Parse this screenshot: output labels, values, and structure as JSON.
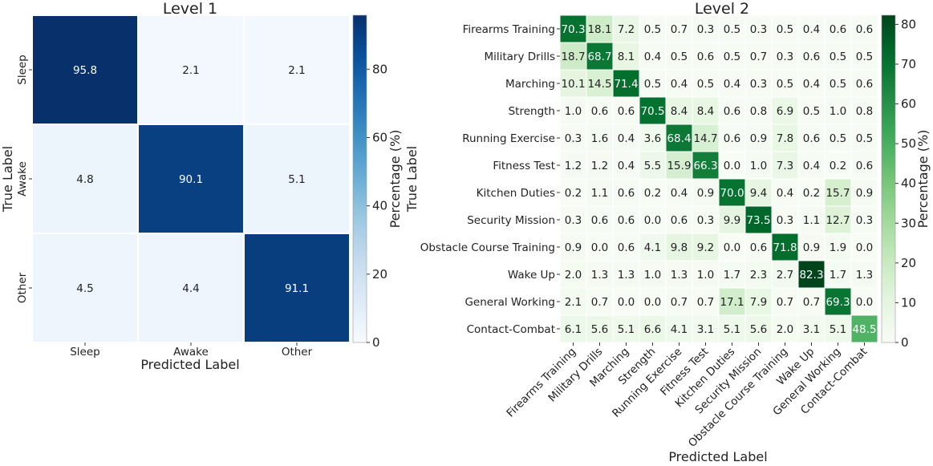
{
  "chart_data": [
    {
      "type": "heatmap",
      "title": "Level 1",
      "xlabel": "Predicted Label",
      "ylabel": "True Label",
      "colorbar_label": "Percentage (%)",
      "colormap": "Blues",
      "colorbar_range": [
        0,
        95.8
      ],
      "colorbar_ticks": [
        "0",
        "20",
        "40",
        "60",
        "80"
      ],
      "categories": [
        "Sleep",
        "Awake",
        "Other"
      ],
      "values": [
        [
          95.8,
          2.1,
          2.1
        ],
        [
          4.8,
          90.1,
          5.1
        ],
        [
          4.5,
          4.4,
          91.1
        ]
      ],
      "value_labels": [
        [
          "95.8",
          "2.1",
          "2.1"
        ],
        [
          "4.8",
          "90.1",
          "5.1"
        ],
        [
          "4.5",
          "4.4",
          "91.1"
        ]
      ]
    },
    {
      "type": "heatmap",
      "title": "Level 2",
      "xlabel": "Predicted Label",
      "ylabel": "True Label",
      "colorbar_label": "Percentage (%)",
      "colormap": "Greens",
      "colorbar_range": [
        0,
        82.3
      ],
      "colorbar_ticks": [
        "0",
        "10",
        "20",
        "30",
        "40",
        "50",
        "60",
        "70",
        "80"
      ],
      "categories": [
        "Firearms Training",
        "Military Drills",
        "Marching",
        "Strength",
        "Running Exercise",
        "Fitness Test",
        "Kitchen Duties",
        "Security Mission",
        "Obstacle Course Training",
        "Wake Up",
        "General Working",
        "Contact-Combat"
      ],
      "values": [
        [
          70.3,
          18.1,
          7.2,
          0.5,
          0.7,
          0.3,
          0.5,
          0.3,
          0.5,
          0.4,
          0.6,
          0.6
        ],
        [
          18.7,
          68.7,
          8.1,
          0.4,
          0.5,
          0.6,
          0.5,
          0.7,
          0.3,
          0.6,
          0.5,
          0.5
        ],
        [
          10.1,
          14.5,
          71.4,
          0.5,
          0.4,
          0.5,
          0.4,
          0.3,
          0.5,
          0.4,
          0.5,
          0.6
        ],
        [
          1.0,
          0.6,
          0.6,
          70.5,
          8.4,
          8.4,
          0.6,
          0.8,
          6.9,
          0.5,
          1.0,
          0.8
        ],
        [
          0.3,
          1.6,
          0.4,
          3.6,
          68.4,
          14.7,
          0.6,
          0.9,
          7.8,
          0.6,
          0.5,
          0.5
        ],
        [
          1.2,
          1.2,
          0.4,
          5.5,
          15.9,
          66.3,
          0.0,
          1.0,
          7.3,
          0.4,
          0.2,
          0.6
        ],
        [
          0.2,
          1.1,
          0.6,
          0.2,
          0.4,
          0.9,
          70.0,
          9.4,
          0.4,
          0.2,
          15.7,
          0.9
        ],
        [
          0.3,
          0.6,
          0.6,
          0.0,
          0.6,
          0.3,
          9.9,
          73.5,
          0.3,
          1.1,
          12.7,
          0.3
        ],
        [
          0.9,
          0.0,
          0.6,
          4.1,
          9.8,
          9.2,
          0.0,
          0.6,
          71.8,
          0.9,
          1.9,
          0.0
        ],
        [
          2.0,
          1.3,
          1.3,
          1.0,
          1.3,
          1.0,
          1.7,
          2.3,
          2.7,
          82.3,
          1.7,
          1.3
        ],
        [
          2.1,
          0.7,
          0.0,
          0.0,
          0.7,
          0.7,
          17.1,
          7.9,
          0.7,
          0.7,
          69.3,
          0.0
        ],
        [
          6.1,
          5.6,
          5.1,
          6.6,
          4.1,
          3.1,
          5.1,
          5.6,
          2.0,
          3.1,
          5.1,
          48.5
        ]
      ],
      "value_labels": [
        [
          "70.3",
          "18.1",
          "7.2",
          "0.5",
          "0.7",
          "0.3",
          "0.5",
          "0.3",
          "0.5",
          "0.4",
          "0.6",
          "0.6"
        ],
        [
          "18.7",
          "68.7",
          "8.1",
          "0.4",
          "0.5",
          "0.6",
          "0.5",
          "0.7",
          "0.3",
          "0.6",
          "0.5",
          "0.5"
        ],
        [
          "10.1",
          "14.5",
          "71.4",
          "0.5",
          "0.4",
          "0.5",
          "0.4",
          "0.3",
          "0.5",
          "0.4",
          "0.5",
          "0.6"
        ],
        [
          "1.0",
          "0.6",
          "0.6",
          "70.5",
          "8.4",
          "8.4",
          "0.6",
          "0.8",
          "6.9",
          "0.5",
          "1.0",
          "0.8"
        ],
        [
          "0.3",
          "1.6",
          "0.4",
          "3.6",
          "68.4",
          "14.7",
          "0.6",
          "0.9",
          "7.8",
          "0.6",
          "0.5",
          "0.5"
        ],
        [
          "1.2",
          "1.2",
          "0.4",
          "5.5",
          "15.9",
          "66.3",
          "0.0",
          "1.0",
          "7.3",
          "0.4",
          "0.2",
          "0.6"
        ],
        [
          "0.2",
          "1.1",
          "0.6",
          "0.2",
          "0.4",
          "0.9",
          "70.0",
          "9.4",
          "0.4",
          "0.2",
          "15.7",
          "0.9"
        ],
        [
          "0.3",
          "0.6",
          "0.6",
          "0.0",
          "0.6",
          "0.3",
          "9.9",
          "73.5",
          "0.3",
          "1.1",
          "12.7",
          "0.3"
        ],
        [
          "0.9",
          "0.0",
          "0.6",
          "4.1",
          "9.8",
          "9.2",
          "0.0",
          "0.6",
          "71.8",
          "0.9",
          "1.9",
          "0.0"
        ],
        [
          "2.0",
          "1.3",
          "1.3",
          "1.0",
          "1.3",
          "1.0",
          "1.7",
          "2.3",
          "2.7",
          "82.3",
          "1.7",
          "1.3"
        ],
        [
          "2.1",
          "0.7",
          "0.0",
          "0.0",
          "0.7",
          "0.7",
          "17.1",
          "7.9",
          "0.7",
          "0.7",
          "69.3",
          "0.0"
        ],
        [
          "6.1",
          "5.6",
          "5.1",
          "6.6",
          "4.1",
          "3.1",
          "5.1",
          "5.6",
          "2.0",
          "3.1",
          "5.1",
          "48.5"
        ]
      ]
    }
  ]
}
